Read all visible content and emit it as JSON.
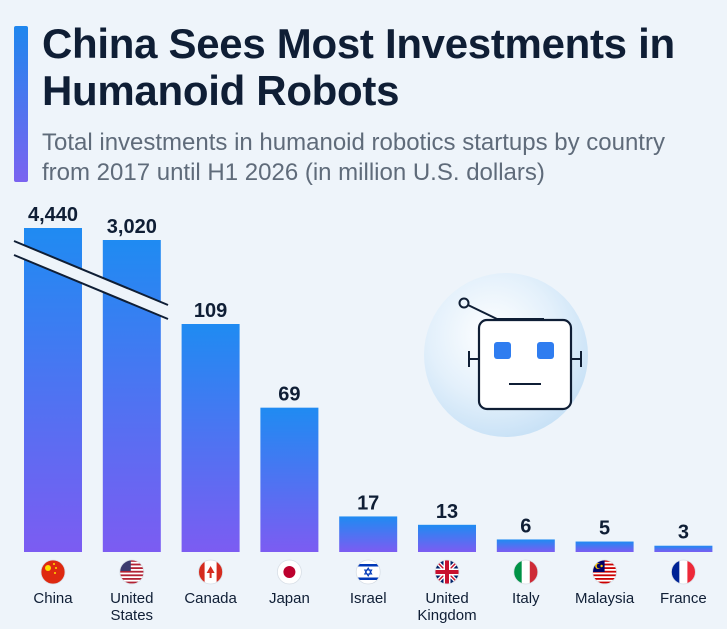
{
  "title": "China Sees Most Investments in Humanoid Robots",
  "subtitle": "Total investments in humanoid robotics startups by country from 2017 until H1 2026 (in million U.S. dollars)",
  "colors": {
    "bar_top": "#1f8bf2",
    "bar_bottom": "#7c5cf2",
    "text_dark": "#0f1e35",
    "subtitle": "#5f6b7a",
    "background": "#eef4fa"
  },
  "decoration": {
    "robot_icon": "robot-face-icon"
  },
  "chart_data": {
    "type": "bar",
    "title": "China Sees Most Investments in Humanoid Robots",
    "subtitle": "Total investments in humanoid robotics startups by country from 2017 until H1 2026 (in million U.S. dollars)",
    "xlabel": "",
    "ylabel": "",
    "categories": [
      "China",
      "United States",
      "Canada",
      "Japan",
      "Israel",
      "United Kingdom",
      "Italy",
      "Malaysia",
      "France"
    ],
    "category_lines": [
      [
        "China"
      ],
      [
        "United",
        "States"
      ],
      [
        "Canada"
      ],
      [
        "Japan"
      ],
      [
        "Israel"
      ],
      [
        "United",
        "Kingdom"
      ],
      [
        "Italy"
      ],
      [
        "Malaysia"
      ],
      [
        "France"
      ]
    ],
    "values": [
      4440,
      3020,
      109,
      69,
      17,
      13,
      6,
      5,
      3
    ],
    "value_labels": [
      "4,440",
      "3,020",
      "109",
      "69",
      "17",
      "13",
      "6",
      "5",
      "3"
    ],
    "flags": [
      "china-flag-icon",
      "us-flag-icon",
      "canada-flag-icon",
      "japan-flag-icon",
      "israel-flag-icon",
      "uk-flag-icon",
      "italy-flag-icon",
      "malaysia-flag-icon",
      "france-flag-icon"
    ],
    "broken_axis": [
      "China",
      "United States"
    ],
    "grid": false,
    "legend": "none"
  }
}
